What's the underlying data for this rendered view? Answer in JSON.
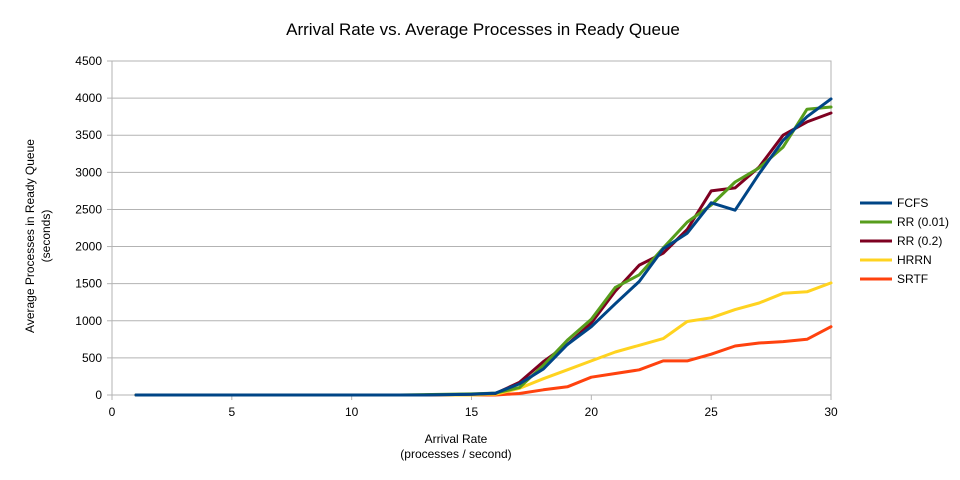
{
  "chart_data": {
    "type": "line",
    "title": "Arrival Rate vs. Average Processes in Ready Queue",
    "xlabel": [
      "Arrival Rate",
      "(processes / second)"
    ],
    "ylabel": [
      "Average Processes in Ready Queue",
      "(seconds)"
    ],
    "xlim": [
      0,
      30
    ],
    "ylim": [
      0,
      4500
    ],
    "xticks": [
      "0",
      "5",
      "10",
      "15",
      "20",
      "25",
      "30"
    ],
    "yticks": [
      "0",
      "500",
      "1000",
      "1500",
      "2000",
      "2500",
      "3000",
      "3500",
      "4000",
      "4500"
    ],
    "grid": "horizontal",
    "legend_position": "right",
    "x": [
      1,
      2,
      3,
      4,
      5,
      6,
      7,
      8,
      9,
      10,
      11,
      12,
      13,
      14,
      15,
      16,
      17,
      18,
      19,
      20,
      21,
      22,
      23,
      24,
      25,
      26,
      27,
      28,
      29,
      30
    ],
    "series": [
      {
        "name": "FCFS",
        "color": "#004586",
        "values": [
          0,
          0,
          0,
          0,
          0,
          0,
          0,
          0,
          0,
          0,
          0,
          0,
          0,
          5,
          10,
          25,
          150,
          350,
          680,
          920,
          1230,
          1530,
          1970,
          2180,
          2590,
          2490,
          2980,
          3430,
          3750,
          3990
        ]
      },
      {
        "name": "RR (0.01)",
        "color": "#579d1c",
        "values": [
          0,
          0,
          0,
          0,
          0,
          0,
          0,
          0,
          0,
          0,
          0,
          0,
          5,
          10,
          15,
          25,
          100,
          400,
          740,
          1020,
          1450,
          1620,
          1980,
          2330,
          2560,
          2870,
          3060,
          3340,
          3850,
          3880
        ]
      },
      {
        "name": "RR (0.2)",
        "color": "#7e0021",
        "values": [
          0,
          0,
          0,
          0,
          0,
          0,
          0,
          0,
          0,
          0,
          0,
          0,
          0,
          5,
          10,
          20,
          170,
          450,
          680,
          970,
          1400,
          1750,
          1910,
          2230,
          2750,
          2790,
          3070,
          3500,
          3680,
          3800
        ]
      },
      {
        "name": "HRRN",
        "color": "#ffd320",
        "values": [
          0,
          0,
          0,
          0,
          0,
          0,
          0,
          0,
          0,
          0,
          0,
          0,
          0,
          0,
          0,
          10,
          90,
          220,
          340,
          460,
          580,
          670,
          760,
          990,
          1040,
          1150,
          1240,
          1370,
          1390,
          1510
        ]
      },
      {
        "name": "SRTF",
        "color": "#ff420e",
        "values": [
          0,
          0,
          0,
          0,
          0,
          0,
          0,
          0,
          0,
          0,
          0,
          0,
          0,
          0,
          0,
          0,
          20,
          70,
          110,
          240,
          290,
          340,
          460,
          460,
          550,
          660,
          700,
          720,
          750,
          920
        ]
      }
    ]
  }
}
